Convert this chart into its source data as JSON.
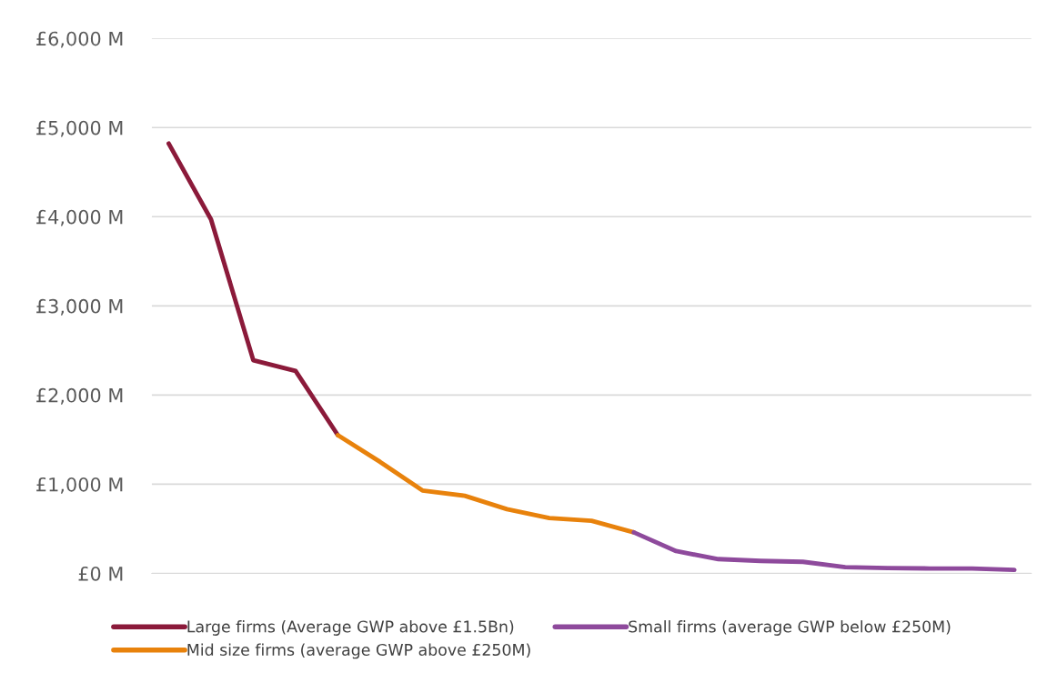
{
  "chart_data": {
    "type": "line",
    "categories": [
      null,
      null,
      null,
      null,
      null,
      null,
      null,
      null,
      null,
      null,
      null,
      null,
      null,
      null,
      null,
      null,
      null,
      null,
      null,
      null,
      null
    ],
    "series": [
      {
        "name": "Large firms (Average GWP above £1.5Bn)",
        "color": "#8b1a3a",
        "values": [
          4820,
          3970,
          2390,
          2270,
          1550,
          null,
          null,
          null,
          null,
          null,
          null,
          null,
          null,
          null,
          null,
          null,
          null,
          null,
          null,
          null,
          null
        ]
      },
      {
        "name": "Mid size firms (average GWP above £250M)",
        "color": "#e8820c",
        "values": [
          null,
          null,
          null,
          null,
          1550,
          1250,
          930,
          870,
          720,
          620,
          590,
          460,
          null,
          null,
          null,
          null,
          null,
          null,
          null,
          null,
          null
        ]
      },
      {
        "name": "Small firms (average GWP below £250M)",
        "color": "#8e4a9c",
        "values": [
          null,
          null,
          null,
          null,
          null,
          null,
          null,
          null,
          null,
          null,
          null,
          460,
          250,
          160,
          140,
          130,
          70,
          60,
          55,
          55,
          40
        ]
      }
    ],
    "ylim": [
      0,
      6000
    ],
    "yticks": [
      {
        "value": 0,
        "label": "£0 M"
      },
      {
        "value": 1000,
        "label": "£1,000 M"
      },
      {
        "value": 2000,
        "label": "£2,000 M"
      },
      {
        "value": 3000,
        "label": "£3,000 M"
      },
      {
        "value": 4000,
        "label": "£4,000 M"
      },
      {
        "value": 5000,
        "label": "£5,000 M"
      },
      {
        "value": 6000,
        "label": "£6,000 M"
      }
    ],
    "grid": "y",
    "legend": "bottom",
    "marker": "none",
    "line_style": "solid"
  }
}
